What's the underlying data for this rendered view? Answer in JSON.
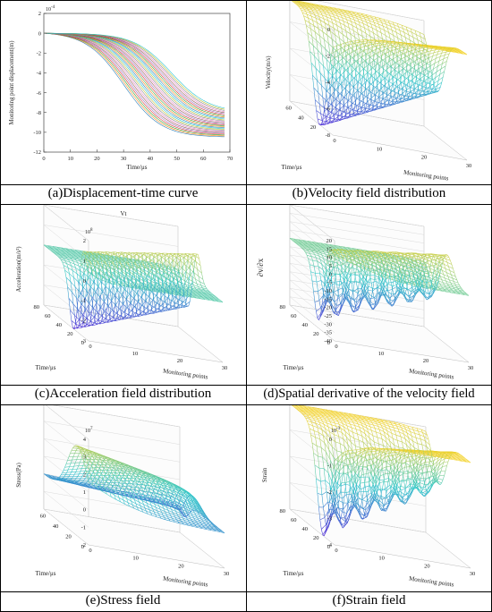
{
  "panels": [
    {
      "id": "a",
      "caption": "(a)Displacement-time curve",
      "chart_data": {
        "type": "line",
        "xlabel": "Time/μs",
        "ylabel": "Monitoring point displacement(m)",
        "exponent": "10",
        "exponent_power": "-4",
        "xlim": [
          0,
          70
        ],
        "ylim": [
          -12,
          2
        ],
        "xticks": [
          0,
          10,
          20,
          30,
          40,
          50,
          60,
          70
        ],
        "yticks": [
          2,
          0,
          -2,
          -4,
          -6,
          -8,
          -10,
          -12
        ],
        "series_description_count": 30,
        "final_value_range": [
          -8.0,
          -10.5
        ],
        "onset_range": [
          12,
          30
        ],
        "grid": false
      }
    },
    {
      "id": "b",
      "caption": "(b)Velocity field distribution",
      "chart_data": {
        "type": "surface",
        "zlabel": "Velocity(m/s)",
        "xlabel": "Monitoring points",
        "ylabel": "Time/μs",
        "zticks": [
          0,
          -2,
          -4,
          -6,
          -8
        ],
        "xticks": [
          0,
          10,
          20,
          30
        ],
        "yticks": [
          20,
          40,
          60
        ],
        "zlim": [
          -8,
          0
        ],
        "min_value": -8,
        "grid": true
      }
    },
    {
      "id": "c",
      "caption": "(c)Acceleration field distribution",
      "chart_data": {
        "type": "surface",
        "title": "Vt",
        "zlabel": "Acceleration(m/s²)",
        "xlabel": "Monitoring points",
        "ylabel": "Time/μs",
        "exponent": "10",
        "exponent_power": "8",
        "zticks": [
          2,
          1,
          0,
          -1,
          -2,
          -3
        ],
        "xticks": [
          0,
          10,
          20,
          30
        ],
        "yticks": [
          0,
          20,
          40,
          60,
          80
        ],
        "zlim": [
          -3,
          2
        ],
        "grid": true
      }
    },
    {
      "id": "d",
      "caption": "(d)Spatial derivative of the velocity field",
      "chart_data": {
        "type": "surface",
        "zlabel": "∂v/∂x",
        "xlabel": "Monitoring points",
        "ylabel": "Time/μs",
        "zticks": [
          20,
          15,
          10,
          5,
          0,
          -5,
          -10,
          -15,
          -20,
          -25,
          -30,
          -35,
          -40
        ],
        "xticks": [
          0,
          10,
          20,
          30
        ],
        "yticks": [
          0,
          20,
          40,
          60,
          80
        ],
        "zlim": [
          -40,
          20
        ],
        "grid": true
      }
    },
    {
      "id": "e",
      "caption": "(e)Stress field",
      "chart_data": {
        "type": "surface",
        "zlabel": "Stress(Pa)",
        "xlabel": "Monitoring points",
        "ylabel": "Time/μs",
        "exponent": "10",
        "exponent_power": "7",
        "zticks": [
          4,
          3,
          2,
          1,
          0,
          -1,
          -2
        ],
        "xticks": [
          0,
          10,
          20,
          30
        ],
        "yticks": [
          0,
          20,
          40,
          60
        ],
        "zlim": [
          -2,
          4
        ],
        "grid": true
      }
    },
    {
      "id": "f",
      "caption": "(f)Strain field",
      "chart_data": {
        "type": "surface",
        "zlabel": "Strain",
        "xlabel": "Monitoring points",
        "ylabel": "Time/μs",
        "exponent": "10",
        "exponent_power": "-3",
        "zticks": [
          0,
          -1,
          -2,
          -3,
          -4
        ],
        "xticks": [
          0,
          10,
          20,
          30
        ],
        "yticks": [
          0,
          20,
          40,
          60,
          80
        ],
        "zlim": [
          -4,
          0
        ],
        "grid": true
      }
    }
  ],
  "colors": {
    "surface_low": "#4b2bd6",
    "surface_mid": "#2fc7c9",
    "surface_high": "#f3d22a",
    "axis": "#333333",
    "grid": "#d6d6d6",
    "border": "#000000"
  }
}
